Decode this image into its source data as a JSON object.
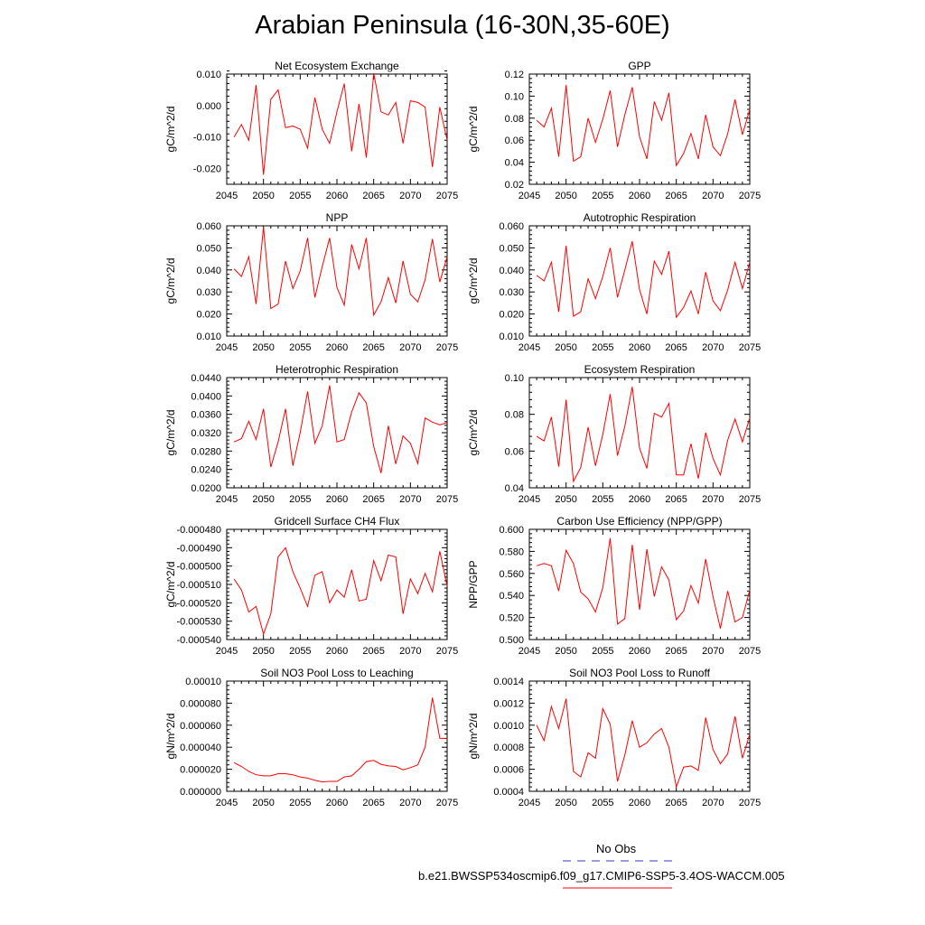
{
  "title": "Arabian Peninsula (16-30N,35-60E)",
  "colors": {
    "model": "#ff0000",
    "obs": "#3333cc",
    "axis": "#000000"
  },
  "legend": {
    "obs_label": "No Obs",
    "model_label": "b.e21.BWSSP534oscmip6.f09_g17.CMIP6-SSP5-3.4OS-WACCM.005"
  },
  "chart_data": [
    {
      "type": "line",
      "title": "Net Ecosystem Exchange",
      "ylabel": "gC/m^2/d",
      "xlim": [
        2045,
        2075
      ],
      "ylim": [
        -0.025,
        0.01
      ],
      "xticks": [
        2045,
        2050,
        2055,
        2060,
        2065,
        2070,
        2075
      ],
      "yticks": [
        "-0.020",
        "-0.010",
        "0.000",
        "0.010"
      ],
      "x": [
        2046,
        2047,
        2048,
        2049,
        2050,
        2051,
        2052,
        2053,
        2054,
        2055,
        2056,
        2057,
        2058,
        2059,
        2060,
        2061,
        2062,
        2063,
        2064,
        2065,
        2066,
        2067,
        2068,
        2069,
        2070,
        2071,
        2072,
        2073,
        2074,
        2075
      ],
      "series": [
        {
          "values": [
            -0.01,
            -0.006,
            -0.011,
            0.0065,
            -0.022,
            0.002,
            0.005,
            -0.007,
            -0.0065,
            -0.0075,
            -0.0135,
            0.0025,
            -0.0075,
            -0.012,
            -0.002,
            0.007,
            -0.0145,
            0.0005,
            -0.0165,
            0.0103,
            -0.002,
            -0.003,
            0.001,
            -0.012,
            0.0015,
            0.001,
            -0.0005,
            -0.0195,
            -0.0005,
            -0.011
          ]
        }
      ]
    },
    {
      "type": "line",
      "title": "GPP",
      "ylabel": "gC/m^2/d",
      "xlim": [
        2045,
        2075
      ],
      "ylim": [
        0.02,
        0.12
      ],
      "xticks": [
        2045,
        2050,
        2055,
        2060,
        2065,
        2070,
        2075
      ],
      "yticks": [
        "0.02",
        "0.04",
        "0.06",
        "0.08",
        "0.10",
        "0.12"
      ],
      "x": [
        2046,
        2047,
        2048,
        2049,
        2050,
        2051,
        2052,
        2053,
        2054,
        2055,
        2056,
        2057,
        2058,
        2059,
        2060,
        2061,
        2062,
        2063,
        2064,
        2065,
        2066,
        2067,
        2068,
        2069,
        2070,
        2071,
        2072,
        2073,
        2074,
        2075
      ],
      "series": [
        {
          "values": [
            0.078,
            0.072,
            0.089,
            0.045,
            0.11,
            0.041,
            0.045,
            0.08,
            0.058,
            0.079,
            0.105,
            0.054,
            0.083,
            0.108,
            0.063,
            0.043,
            0.095,
            0.078,
            0.103,
            0.037,
            0.048,
            0.066,
            0.043,
            0.083,
            0.054,
            0.046,
            0.066,
            0.097,
            0.065,
            0.088
          ]
        }
      ]
    },
    {
      "type": "line",
      "title": "NPP",
      "ylabel": "gC/m^2/d",
      "xlim": [
        2045,
        2075
      ],
      "ylim": [
        0.01,
        0.06
      ],
      "xticks": [
        2045,
        2050,
        2055,
        2060,
        2065,
        2070,
        2075
      ],
      "yticks": [
        "0.010",
        "0.020",
        "0.030",
        "0.040",
        "0.050",
        "0.060"
      ],
      "x": [
        2046,
        2047,
        2048,
        2049,
        2050,
        2051,
        2052,
        2053,
        2054,
        2055,
        2056,
        2057,
        2058,
        2059,
        2060,
        2061,
        2062,
        2063,
        2064,
        2065,
        2066,
        2067,
        2068,
        2069,
        2070,
        2071,
        2072,
        2073,
        2074,
        2075
      ],
      "series": [
        {
          "values": [
            0.0405,
            0.037,
            0.046,
            0.0245,
            0.0595,
            0.0225,
            0.0245,
            0.044,
            0.0315,
            0.0395,
            0.0545,
            0.0275,
            0.0415,
            0.0545,
            0.032,
            0.024,
            0.0515,
            0.0405,
            0.0545,
            0.0195,
            0.0255,
            0.0365,
            0.025,
            0.044,
            0.029,
            0.0255,
            0.0355,
            0.054,
            0.0345,
            0.046
          ]
        }
      ]
    },
    {
      "type": "line",
      "title": "Autotrophic Respiration",
      "ylabel": "gC/m^2/d",
      "xlim": [
        2045,
        2075
      ],
      "ylim": [
        0.01,
        0.06
      ],
      "xticks": [
        2045,
        2050,
        2055,
        2060,
        2065,
        2070,
        2075
      ],
      "yticks": [
        "0.010",
        "0.020",
        "0.030",
        "0.040",
        "0.050",
        "0.060"
      ],
      "x": [
        2046,
        2047,
        2048,
        2049,
        2050,
        2051,
        2052,
        2053,
        2054,
        2055,
        2056,
        2057,
        2058,
        2059,
        2060,
        2061,
        2062,
        2063,
        2064,
        2065,
        2066,
        2067,
        2068,
        2069,
        2070,
        2071,
        2072,
        2073,
        2074,
        2075
      ],
      "series": [
        {
          "values": [
            0.0375,
            0.035,
            0.0435,
            0.021,
            0.051,
            0.019,
            0.021,
            0.036,
            0.027,
            0.037,
            0.05,
            0.0275,
            0.04,
            0.053,
            0.031,
            0.02,
            0.044,
            0.038,
            0.0485,
            0.0185,
            0.023,
            0.0305,
            0.02,
            0.039,
            0.026,
            0.0215,
            0.031,
            0.0435,
            0.0315,
            0.0435
          ]
        }
      ]
    },
    {
      "type": "line",
      "title": "Heterotrophic Respiration",
      "ylabel": "gC/m^2/d",
      "xlim": [
        2045,
        2075
      ],
      "ylim": [
        0.02,
        0.044
      ],
      "xticks": [
        2045,
        2050,
        2055,
        2060,
        2065,
        2070,
        2075
      ],
      "yticks": [
        "0.0200",
        "0.0240",
        "0.0280",
        "0.0320",
        "0.0360",
        "0.0400",
        "0.0440"
      ],
      "x": [
        2046,
        2047,
        2048,
        2049,
        2050,
        2051,
        2052,
        2053,
        2054,
        2055,
        2056,
        2057,
        2058,
        2059,
        2060,
        2061,
        2062,
        2063,
        2064,
        2065,
        2066,
        2067,
        2068,
        2069,
        2070,
        2071,
        2072,
        2073,
        2074,
        2075
      ],
      "series": [
        {
          "values": [
            0.03,
            0.0307,
            0.0345,
            0.0305,
            0.0372,
            0.0245,
            0.03,
            0.0372,
            0.0248,
            0.032,
            0.041,
            0.0297,
            0.0335,
            0.0423,
            0.03,
            0.0305,
            0.0365,
            0.0407,
            0.0385,
            0.029,
            0.0232,
            0.0335,
            0.0252,
            0.0313,
            0.0297,
            0.0253,
            0.0352,
            0.0343,
            0.0337,
            0.0342
          ]
        }
      ]
    },
    {
      "type": "line",
      "title": "Ecosystem Respiration",
      "ylabel": "gC/m^2/d",
      "xlim": [
        2045,
        2075
      ],
      "ylim": [
        0.04,
        0.1
      ],
      "xticks": [
        2045,
        2050,
        2055,
        2060,
        2065,
        2070,
        2075
      ],
      "yticks": [
        "0.04",
        "0.06",
        "0.08",
        "0.10"
      ],
      "x": [
        2046,
        2047,
        2048,
        2049,
        2050,
        2051,
        2052,
        2053,
        2054,
        2055,
        2056,
        2057,
        2058,
        2059,
        2060,
        2061,
        2062,
        2063,
        2064,
        2065,
        2066,
        2067,
        2068,
        2069,
        2070,
        2071,
        2072,
        2073,
        2074,
        2075
      ],
      "series": [
        {
          "values": [
            0.068,
            0.0655,
            0.0785,
            0.0515,
            0.088,
            0.0435,
            0.051,
            0.073,
            0.052,
            0.069,
            0.091,
            0.0575,
            0.0735,
            0.095,
            0.0615,
            0.0505,
            0.0805,
            0.0785,
            0.086,
            0.047,
            0.047,
            0.064,
            0.045,
            0.07,
            0.056,
            0.047,
            0.066,
            0.0775,
            0.065,
            0.078
          ]
        }
      ]
    },
    {
      "type": "line",
      "title": "Gridcell Surface CH4 Flux",
      "ylabel": "gC/m^2/d",
      "xlim": [
        2045,
        2075
      ],
      "ylim": [
        -0.00054,
        -0.00048
      ],
      "xticks": [
        2045,
        2050,
        2055,
        2060,
        2065,
        2070,
        2075
      ],
      "yticks": [
        "-0.000540",
        "-0.000530",
        "-0.000520",
        "-0.000510",
        "-0.000500",
        "-0.000490",
        "-0.000480"
      ],
      "x": [
        2046,
        2047,
        2048,
        2049,
        2050,
        2051,
        2052,
        2053,
        2054,
        2055,
        2056,
        2057,
        2058,
        2059,
        2060,
        2061,
        2062,
        2063,
        2064,
        2065,
        2066,
        2067,
        2068,
        2069,
        2070,
        2071,
        2072,
        2073,
        2074,
        2075
      ],
      "series": [
        {
          "values": [
            -0.000507,
            -0.000513,
            -0.000525,
            -0.000522,
            -0.000537,
            -0.000526,
            -0.000495,
            -0.00049,
            -0.000503,
            -0.000512,
            -0.000522,
            -0.000505,
            -0.000503,
            -0.00052,
            -0.000513,
            -0.000517,
            -0.000502,
            -0.000519,
            -0.000518,
            -0.000497,
            -0.000508,
            -0.000494,
            -0.000495,
            -0.000526,
            -0.000507,
            -0.000515,
            -0.000504,
            -0.000514,
            -0.000492,
            -0.000511
          ]
        }
      ]
    },
    {
      "type": "line",
      "title": "Carbon Use Efficiency (NPP/GPP)",
      "ylabel": "NPP/GPP",
      "xlim": [
        2045,
        2075
      ],
      "ylim": [
        0.5,
        0.6
      ],
      "xticks": [
        2045,
        2050,
        2055,
        2060,
        2065,
        2070,
        2075
      ],
      "yticks": [
        "0.500",
        "0.520",
        "0.540",
        "0.560",
        "0.580",
        "0.600"
      ],
      "x": [
        2046,
        2047,
        2048,
        2049,
        2050,
        2051,
        2052,
        2053,
        2054,
        2055,
        2056,
        2057,
        2058,
        2059,
        2060,
        2061,
        2062,
        2063,
        2064,
        2065,
        2066,
        2067,
        2068,
        2069,
        2070,
        2071,
        2072,
        2073,
        2074,
        2075
      ],
      "series": [
        {
          "values": [
            0.567,
            0.569,
            0.567,
            0.544,
            0.581,
            0.569,
            0.543,
            0.537,
            0.525,
            0.547,
            0.592,
            0.514,
            0.519,
            0.586,
            0.527,
            0.582,
            0.539,
            0.566,
            0.554,
            0.518,
            0.526,
            0.549,
            0.533,
            0.573,
            0.539,
            0.51,
            0.544,
            0.516,
            0.52,
            0.545
          ]
        }
      ]
    },
    {
      "type": "line",
      "title": "Soil NO3 Pool Loss to Leaching",
      "ylabel": "gN/m^2/d",
      "xlim": [
        2045,
        2075
      ],
      "ylim": [
        0,
        0.0001
      ],
      "xticks": [
        2045,
        2050,
        2055,
        2060,
        2065,
        2070,
        2075
      ],
      "yticks": [
        "0.000000",
        "0.000020",
        "0.000040",
        "0.000060",
        "0.000080",
        "0.00010"
      ],
      "x": [
        2046,
        2047,
        2048,
        2049,
        2050,
        2051,
        2052,
        2053,
        2054,
        2055,
        2056,
        2057,
        2058,
        2059,
        2060,
        2061,
        2062,
        2063,
        2064,
        2065,
        2066,
        2067,
        2068,
        2069,
        2070,
        2071,
        2072,
        2073,
        2074,
        2075
      ],
      "series": [
        {
          "values": [
            2.6e-05,
            2.25e-05,
            1.8e-05,
            1.5e-05,
            1.4e-05,
            1.4e-05,
            1.6e-05,
            1.6e-05,
            1.5e-05,
            1.3e-05,
            1.2e-05,
            1e-05,
            8.5e-06,
            9e-06,
            9e-06,
            1.3e-05,
            1.4e-05,
            2e-05,
            2.7e-05,
            2.8e-05,
            2.45e-05,
            2.3e-05,
            2.25e-05,
            1.95e-05,
            2.15e-05,
            2.4e-05,
            4e-05,
            8.5e-05,
            4.8e-05,
            4.8e-05
          ]
        }
      ]
    },
    {
      "type": "line",
      "title": "Soil NO3 Pool Loss to Runoff",
      "ylabel": "gN/m^2/d",
      "xlim": [
        2045,
        2075
      ],
      "ylim": [
        0.0004,
        0.0014
      ],
      "xticks": [
        2045,
        2050,
        2055,
        2060,
        2065,
        2070,
        2075
      ],
      "yticks": [
        "0.0004",
        "0.0006",
        "0.0008",
        "0.0010",
        "0.0012",
        "0.0014"
      ],
      "x": [
        2046,
        2047,
        2048,
        2049,
        2050,
        2051,
        2052,
        2053,
        2054,
        2055,
        2056,
        2057,
        2058,
        2059,
        2060,
        2061,
        2062,
        2063,
        2064,
        2065,
        2066,
        2067,
        2068,
        2069,
        2070,
        2071,
        2072,
        2073,
        2074,
        2075
      ],
      "series": [
        {
          "values": [
            0.001,
            0.00086,
            0.00117,
            0.00097,
            0.00124,
            0.00058,
            0.00053,
            0.00075,
            0.0007,
            0.00115,
            0.00101,
            0.00049,
            0.00073,
            0.00104,
            0.0008,
            0.00084,
            0.00092,
            0.00097,
            0.0008,
            0.00044,
            0.00062,
            0.00063,
            0.00059,
            0.00107,
            0.00078,
            0.00065,
            0.00074,
            0.00108,
            0.0007,
            0.00092
          ]
        }
      ]
    }
  ]
}
